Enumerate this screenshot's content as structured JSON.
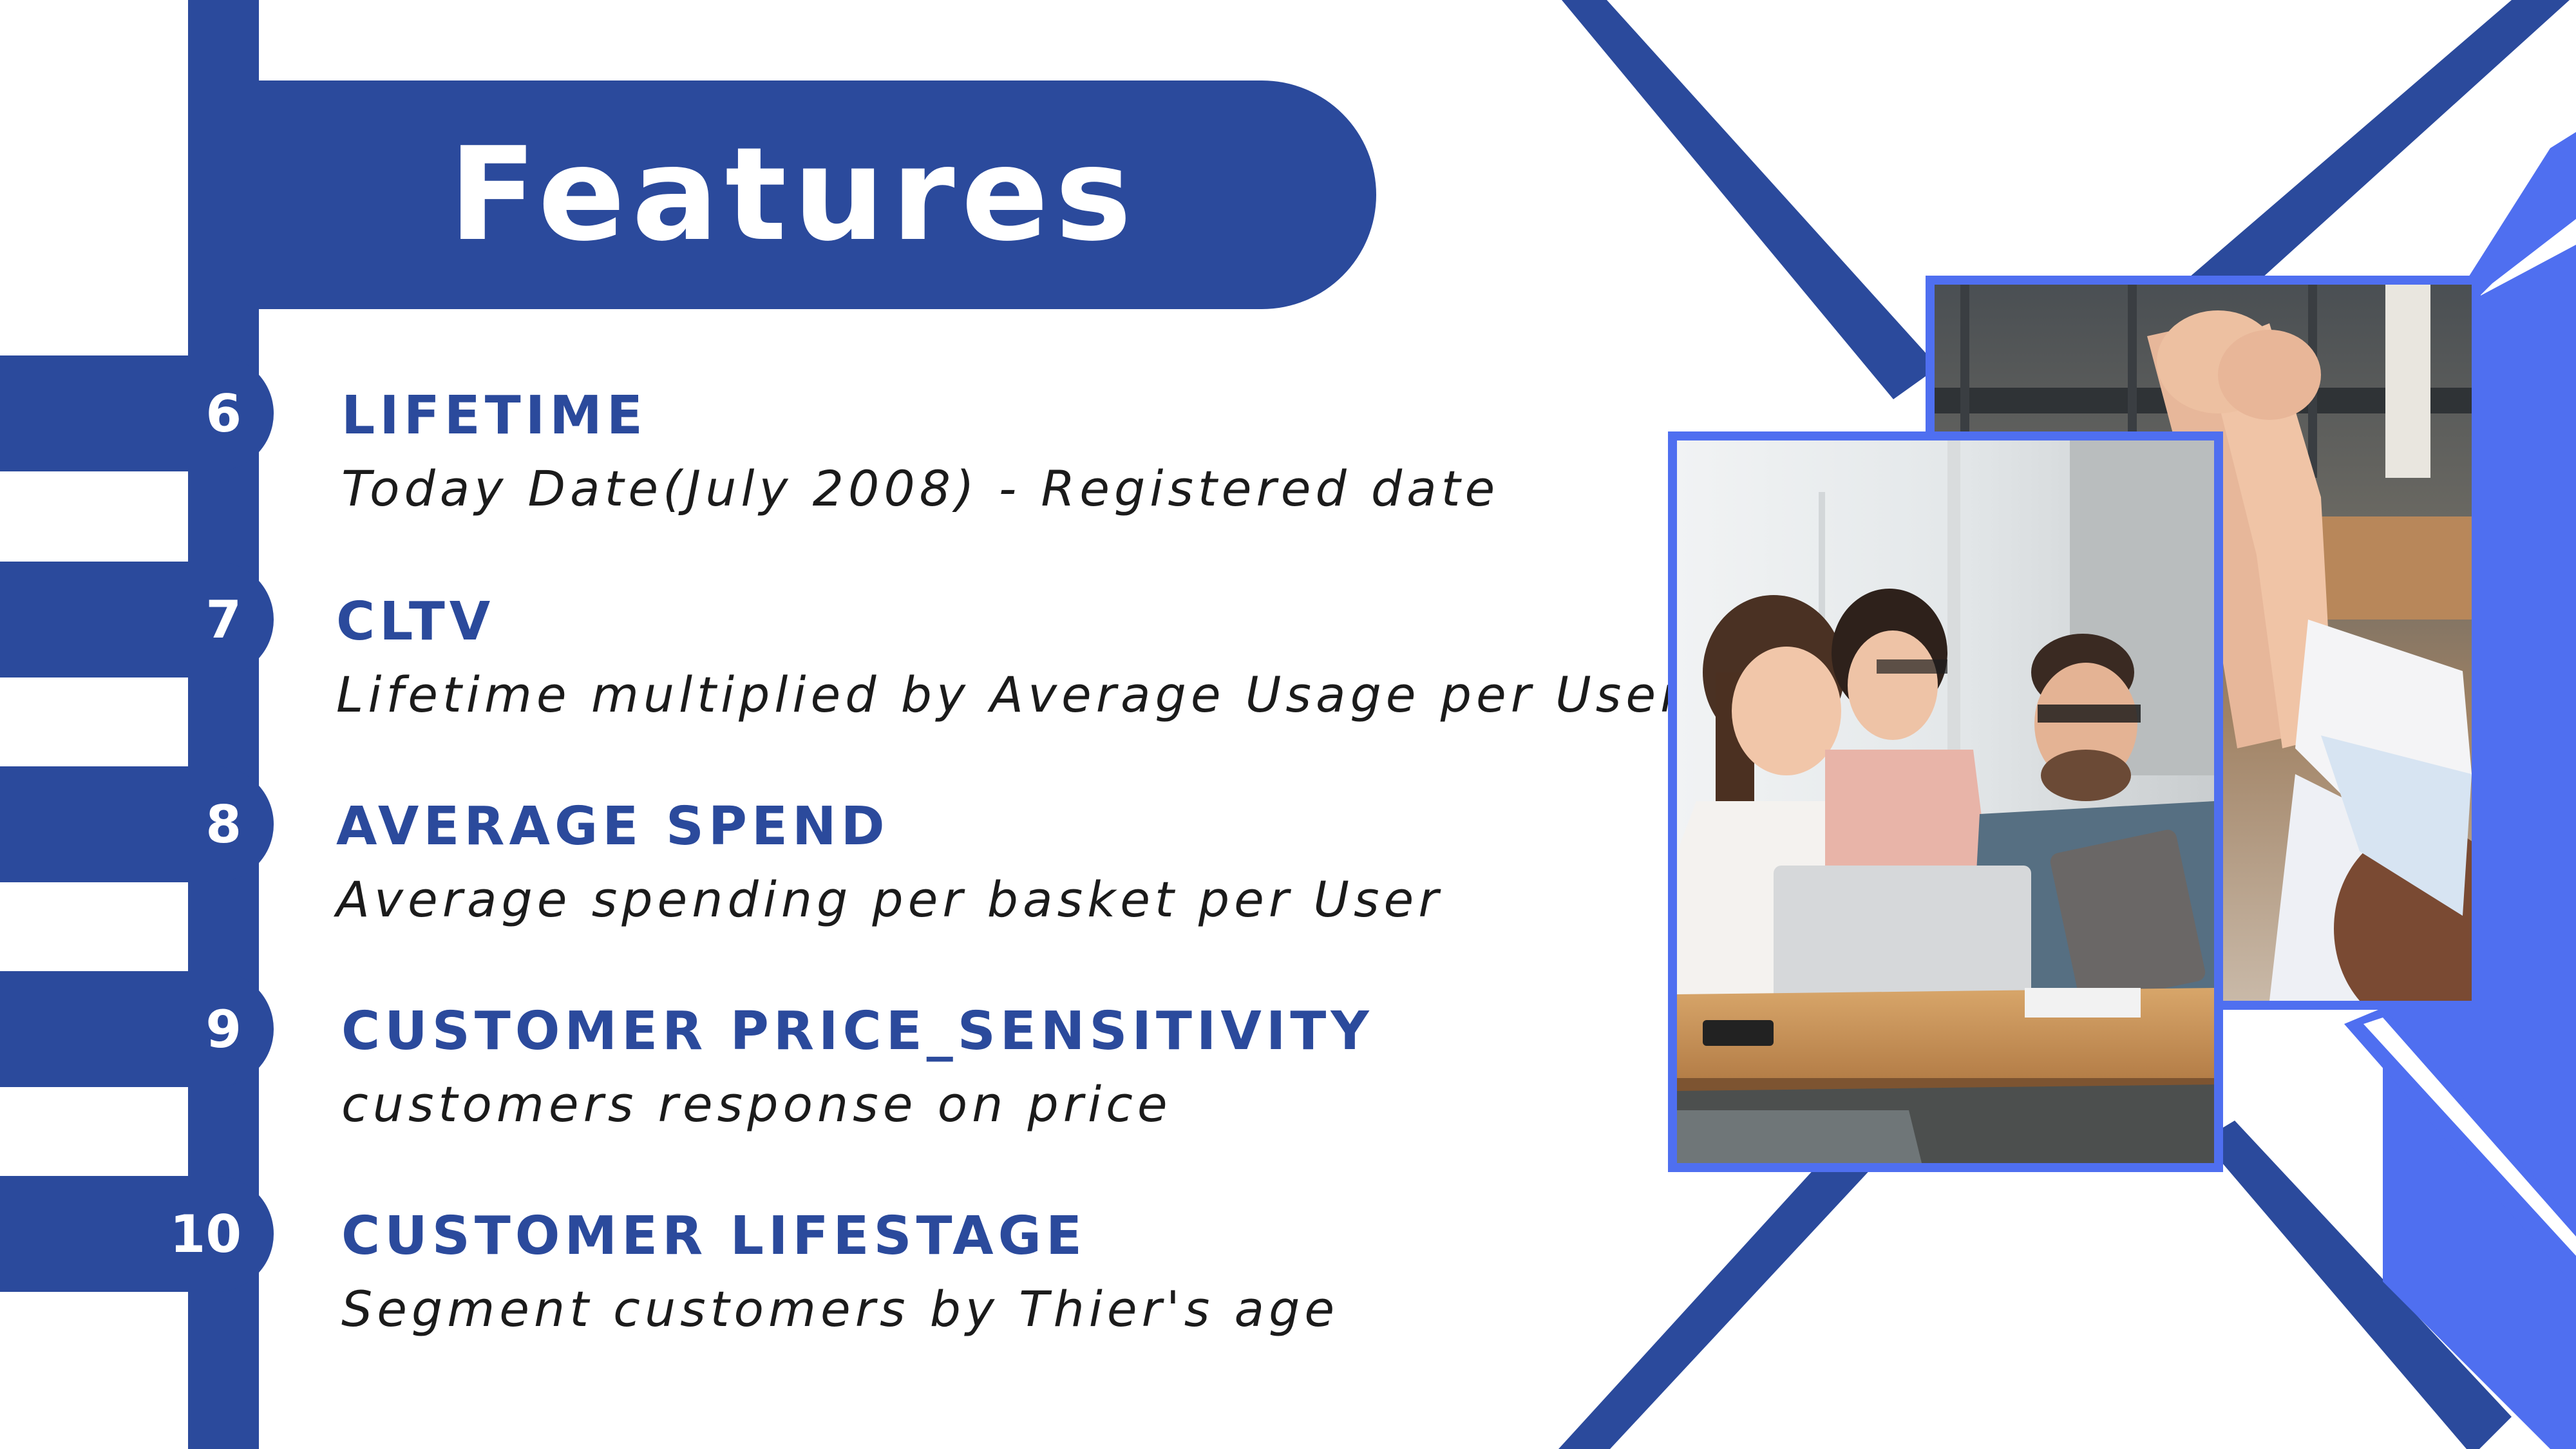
{
  "title": "Features",
  "features": [
    {
      "number": "6",
      "title": "LIFETIME",
      "desc": "Today Date(July 2008) - Registered date"
    },
    {
      "number": "7",
      "title": "CLTV",
      "desc": "Lifetime multiplied by Average Usage per User"
    },
    {
      "number": "8",
      "title": "AVERAGE SPEND",
      "desc": "Average spending per basket per User"
    },
    {
      "number": "9",
      "title": "CUSTOMER PRICE_SENSITIVITY",
      "desc": "customers response on price"
    },
    {
      "number": "10",
      "title": "CUSTOMER LIFESTAGE",
      "desc": "Segment customers by Thier's age"
    }
  ],
  "images": {
    "back": "photo-high-five-hands",
    "front": "photo-team-at-laptop"
  },
  "colors": {
    "primary": "#2b4a9c",
    "accent": "#4f6ff0",
    "text": "#1b1b1b",
    "background": "#ffffff"
  }
}
